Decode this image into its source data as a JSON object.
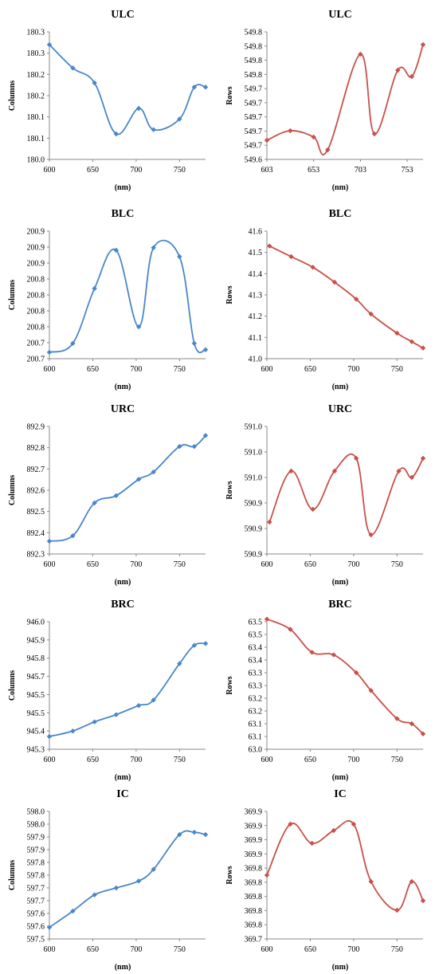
{
  "chart_data": [
    {
      "type": "line",
      "title": "ULC",
      "xlabel": "(nm)",
      "ylabel": "Columns",
      "color": "#4a86c8",
      "x": [
        600,
        627,
        652,
        677,
        703,
        720,
        750,
        767,
        780
      ],
      "y": [
        180.27,
        180.215,
        180.18,
        180.06,
        180.12,
        180.07,
        180.095,
        180.17,
        180.17
      ],
      "xlim": [
        600,
        780
      ],
      "xticks": [
        600,
        650,
        700,
        750
      ],
      "xtick_labels": [
        "600",
        "650",
        "700",
        "750"
      ],
      "ylim": [
        180.0,
        180.3
      ],
      "ytick_labels": [
        "180.0",
        "180.1",
        "180.1",
        "180.2",
        "180.2",
        "180.3",
        "180.3"
      ],
      "grid": false,
      "legend": "none"
    },
    {
      "type": "line",
      "title": "ULC",
      "xlabel": "(nm)",
      "ylabel": "Rows",
      "color": "#c9504a",
      "x": [
        603,
        628,
        653,
        668,
        703,
        718,
        743,
        758,
        770
      ],
      "y": [
        549.63,
        549.645,
        549.635,
        549.615,
        549.765,
        549.64,
        549.74,
        549.73,
        549.78
      ],
      "xlim": [
        603,
        770
      ],
      "xticks": [
        603,
        653,
        703,
        753
      ],
      "xtick_labels": [
        "603",
        "653",
        "703",
        "753"
      ],
      "ylim": [
        549.6,
        549.8
      ],
      "ytick_labels": [
        "549.6",
        "549.7",
        "549.7",
        "549.7",
        "549.7",
        "549.7",
        "549.8",
        "549.8",
        "549.8",
        "549.8"
      ],
      "grid": false,
      "legend": "none"
    },
    {
      "type": "line",
      "title": "BLC",
      "xlabel": "(nm)",
      "ylabel": "Columns",
      "color": "#4a86c8",
      "x": [
        600,
        627,
        652,
        677,
        703,
        720,
        750,
        767,
        780
      ],
      "y": [
        200.71,
        200.724,
        200.81,
        200.87,
        200.75,
        200.874,
        200.86,
        200.724,
        200.714
      ],
      "xlim": [
        600,
        780
      ],
      "xticks": [
        600,
        650,
        700,
        750
      ],
      "xtick_labels": [
        "600",
        "650",
        "700",
        "750"
      ],
      "ylim": [
        200.7,
        200.9
      ],
      "ytick_labels": [
        "200.7",
        "200.7",
        "200.8",
        "200.8",
        "200.8",
        "200.8",
        "200.9",
        "200.9",
        "200.9"
      ],
      "grid": false,
      "legend": "none"
    },
    {
      "type": "line",
      "title": "BLC",
      "xlabel": "(nm)",
      "ylabel": "Rows",
      "color": "#c9504a",
      "x": [
        603,
        628,
        653,
        678,
        703,
        720,
        750,
        767,
        780
      ],
      "y": [
        41.53,
        41.48,
        41.43,
        41.36,
        41.28,
        41.21,
        41.12,
        41.08,
        41.05
      ],
      "xlim": [
        600,
        780
      ],
      "xticks": [
        600,
        650,
        700,
        750
      ],
      "xtick_labels": [
        "600",
        "650",
        "700",
        "750"
      ],
      "ylim": [
        41.0,
        41.6
      ],
      "ytick_labels": [
        "41.0",
        "41.1",
        "41.2",
        "41.3",
        "41.4",
        "41.5",
        "41.6"
      ],
      "grid": false,
      "legend": "none"
    },
    {
      "type": "line",
      "title": "URC",
      "xlabel": "(nm)",
      "ylabel": "Columns",
      "color": "#4a86c8",
      "x": [
        600,
        627,
        652,
        677,
        703,
        720,
        750,
        767,
        780
      ],
      "y": [
        892.37,
        892.4,
        892.58,
        892.62,
        892.71,
        892.75,
        892.89,
        892.89,
        892.95
      ],
      "xlim": [
        600,
        780
      ],
      "xticks": [
        600,
        650,
        700,
        750
      ],
      "xtick_labels": [
        "600",
        "650",
        "700",
        "750"
      ],
      "ylim": [
        892.3,
        893.0
      ],
      "ytick_labels": [
        "892.3",
        "892.4",
        "892.5",
        "892.6",
        "892.7",
        "892.8",
        "892.9"
      ],
      "grid": false,
      "legend": "none"
    },
    {
      "type": "line",
      "title": "URC",
      "xlabel": "(nm)",
      "ylabel": "Rows",
      "color": "#c9504a",
      "x": [
        603,
        628,
        653,
        678,
        703,
        720,
        752,
        767,
        780
      ],
      "y": [
        590.9,
        590.98,
        590.92,
        590.98,
        591.0,
        590.88,
        590.98,
        590.97,
        591.0
      ],
      "xlim": [
        600,
        780
      ],
      "xticks": [
        600,
        650,
        700,
        750
      ],
      "xtick_labels": [
        "600",
        "650",
        "700",
        "750"
      ],
      "ylim": [
        590.85,
        591.05
      ],
      "ytick_labels": [
        "590.9",
        "590.9",
        "590.9",
        "591.0",
        "591.0",
        "591.0"
      ],
      "grid": false,
      "legend": "none"
    },
    {
      "type": "line",
      "title": "BRC",
      "xlabel": "(nm)",
      "ylabel": "Columns",
      "color": "#4a86c8",
      "x": [
        600,
        627,
        652,
        677,
        703,
        720,
        750,
        767,
        780
      ],
      "y": [
        945.37,
        945.4,
        945.45,
        945.49,
        945.54,
        945.57,
        945.77,
        945.87,
        945.88
      ],
      "xlim": [
        600,
        780
      ],
      "xticks": [
        600,
        650,
        700,
        750
      ],
      "xtick_labels": [
        "600",
        "650",
        "700",
        "750"
      ],
      "ylim": [
        945.3,
        946.0
      ],
      "ytick_labels": [
        "945.3",
        "945.4",
        "945.5",
        "945.5",
        "945.7",
        "945.8",
        "945.9",
        "946.0"
      ],
      "grid": false,
      "legend": "none"
    },
    {
      "type": "line",
      "title": "BRC",
      "xlabel": "(nm)",
      "ylabel": "Rows",
      "color": "#c9504a",
      "x": [
        600,
        627,
        652,
        677,
        703,
        720,
        750,
        767,
        780
      ],
      "y": [
        63.51,
        63.47,
        63.38,
        63.37,
        63.3,
        63.23,
        63.12,
        63.1,
        63.06
      ],
      "xlim": [
        600,
        780
      ],
      "xticks": [
        600,
        650,
        700,
        750
      ],
      "xtick_labels": [
        "600",
        "650",
        "700",
        "750"
      ],
      "ylim": [
        63.0,
        63.5
      ],
      "ytick_labels": [
        "63.0",
        "63.1",
        "63.1",
        "63.2",
        "63.2",
        "63.3",
        "63.3",
        "63.4",
        "63.4",
        "63.5",
        "63.5"
      ],
      "grid": false,
      "legend": "none"
    },
    {
      "type": "line",
      "title": "IC",
      "xlabel": "(nm)",
      "ylabel": "Columns",
      "color": "#4a86c8",
      "x": [
        600,
        627,
        652,
        677,
        703,
        720,
        750,
        767,
        780
      ],
      "y": [
        597.55,
        597.62,
        597.69,
        597.72,
        597.75,
        597.8,
        597.95,
        597.96,
        597.95
      ],
      "xlim": [
        600,
        780
      ],
      "xticks": [
        600,
        650,
        700,
        750
      ],
      "xtick_labels": [
        "600",
        "650",
        "700",
        "750"
      ],
      "ylim": [
        597.5,
        598.05
      ],
      "ytick_labels": [
        "597.5",
        "597.6",
        "597.6",
        "597.7",
        "597.7",
        "597.8",
        "597.8",
        "597.9",
        "597.9",
        "598.0",
        "598.0"
      ],
      "grid": false,
      "legend": "none"
    },
    {
      "type": "line",
      "title": "IC",
      "xlabel": "(nm)",
      "ylabel": "Rows",
      "color": "#c9504a",
      "x": [
        600,
        627,
        652,
        677,
        700,
        720,
        750,
        767,
        780
      ],
      "y": [
        369.8,
        369.88,
        369.85,
        369.87,
        369.88,
        369.79,
        369.745,
        369.79,
        369.76
      ],
      "xlim": [
        600,
        780
      ],
      "xticks": [
        600,
        650,
        700,
        750
      ],
      "xtick_labels": [
        "600",
        "650",
        "700",
        "750"
      ],
      "ylim": [
        369.7,
        369.9
      ],
      "ytick_labels": [
        "369.7",
        "369.8",
        "369.8",
        "369.8",
        "369.8",
        "369.8",
        "369.9",
        "369.9",
        "369.9",
        "369.9"
      ],
      "grid": false,
      "legend": "none"
    }
  ]
}
